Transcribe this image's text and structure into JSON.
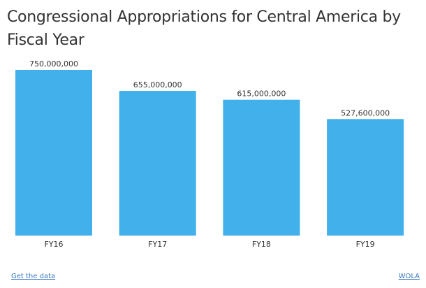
{
  "chart_data": {
    "type": "bar",
    "title": "Congressional Appropriations for Central America by Fiscal Year",
    "categories": [
      "FY16",
      "FY17",
      "FY18",
      "FY19"
    ],
    "values": [
      750000000,
      655000000,
      615000000,
      527600000
    ],
    "value_labels": [
      "750,000,000",
      "655,000,000",
      "615,000,000",
      "527,600,000"
    ],
    "xlabel": "",
    "ylabel": "",
    "ylim": [
      0,
      800000000
    ],
    "grid": false,
    "legend": "none",
    "bar_color": "#42b0ea"
  },
  "footer": {
    "data_link": "Get the data",
    "source_link": "WOLA",
    "link_color": "#3a78c0"
  }
}
